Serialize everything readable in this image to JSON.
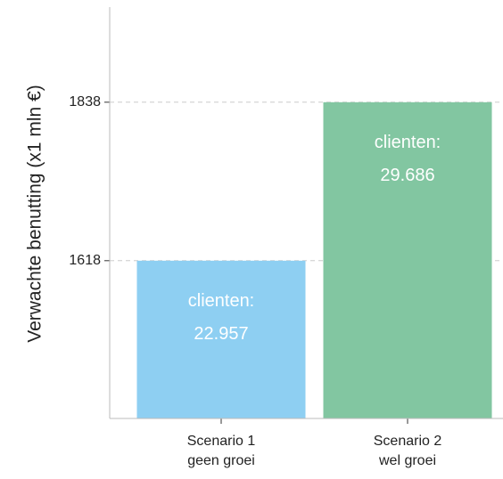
{
  "chart_data": {
    "type": "bar",
    "y_label": "Verwachte benutting (x1 mln €)",
    "categories": [
      [
        "Scenario 1",
        "geen groei"
      ],
      [
        "Scenario 2",
        "wel groei"
      ]
    ],
    "values": [
      1618,
      1838
    ],
    "colors": [
      "#8ecff2",
      "#82c6a1"
    ],
    "annotations": [
      [
        "clienten:",
        "22.957"
      ],
      [
        "clienten:",
        "29.686"
      ]
    ],
    "ylim": [
      1399,
      1970
    ],
    "yticks": [
      1618,
      1838
    ],
    "grid": true
  }
}
